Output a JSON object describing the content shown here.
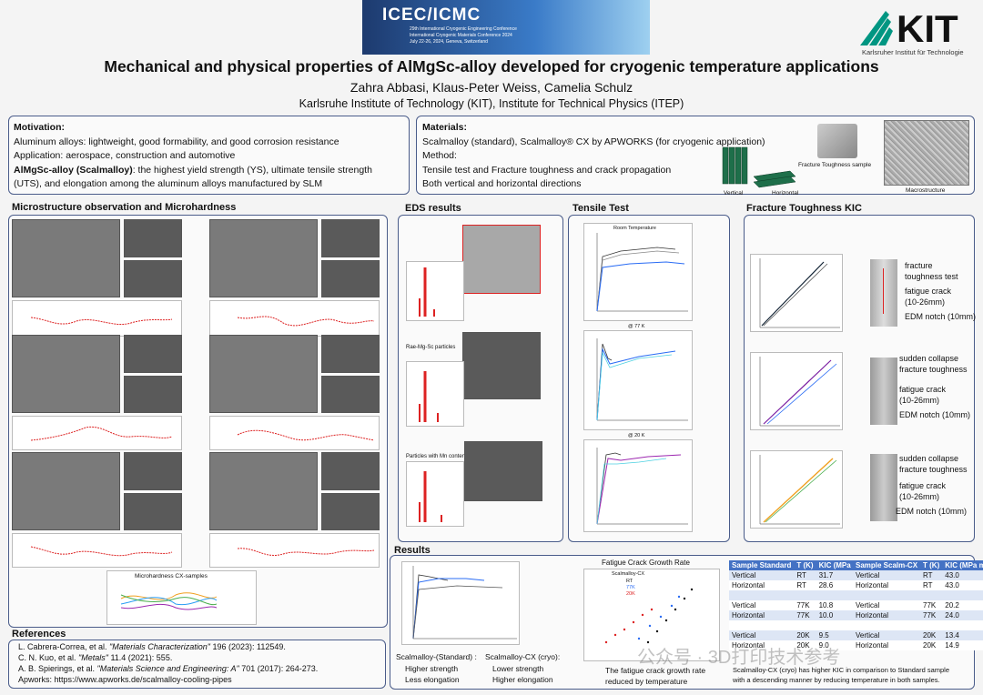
{
  "banner": {
    "conference_logo": "ICEC/ICMC",
    "line1": "29th International Cryogenic Engineering Conference",
    "line2": "International Cryogenic Materials Conference 2024",
    "line3": "July 22-26, 2024, Geneva, Switzerland"
  },
  "institution_logo": {
    "mark": "KIT",
    "caption": "Karlsruher Institut für Technologie"
  },
  "title": "Mechanical and physical properties of AlMgSc-alloy developed for cryogenic temperature applications",
  "authors": "Zahra Abbasi, Klaus-Peter Weiss, Camelia Schulz",
  "affiliation": "Karlsruhe Institute of Technology (KIT), Institute for Technical Physics (ITEP)",
  "motivation": {
    "heading": "Motivation:",
    "line1": "Aluminum alloys: lightweight, good formability, and good corrosion resistance",
    "line2": "Application: aerospace, construction and automotive",
    "line3_bold": "AlMgSc-alloy (Scalmalloy)",
    "line3_rest": ": the highest yield strength (YS), ultimate tensile strength",
    "line4": "(UTS), and elongation among the aluminum alloys manufactured by SLM"
  },
  "materials": {
    "heading": "Materials:",
    "line1": "Scalmalloy (standard), Scalmalloy® CX by APWORKS (for cryogenic application)",
    "line2": "Method:",
    "line3": "Tensile test  and Fracture toughness and crack propagation",
    "line4": "Both vertical and horizontal directions",
    "label_vertical": "Vertical",
    "label_horizontal": "Horizontal",
    "label_ft_sample": "Fracture Toughness sample",
    "label_micro": "Macrostructure"
  },
  "sections": {
    "micro": "Microstructure observation and Microhardness",
    "eds": "EDS results",
    "tensile": "Tensile Test",
    "fracture": "Fracture Toughness KIC",
    "results": "Results",
    "references": "References"
  },
  "micro_panel": {
    "microhardness_title": "Microhardness CX-samples"
  },
  "eds_panel": {
    "label_mid": "Rae-Mg-Sc particles",
    "label_bottom": "Particles with Mn content"
  },
  "tensile_panel": {
    "plot1_title": "Room Temperature",
    "plot2_title": "@ 77 K",
    "plot3_title": "@ 20 K",
    "ylabel": "Stress [MPa]",
    "xlabel": "Strain"
  },
  "fracture_panel": {
    "s1_line1": "fracture",
    "s1_line2": "toughness test",
    "s1_line3": "fatigue crack",
    "s1_line4": "(10-26mm)",
    "s1_line5": "EDM notch (10mm)",
    "s2_line1": "sudden collapse",
    "s2_line2": "fracture toughness",
    "s2_line3": "fatigue crack",
    "s2_line4": "(10-26mm)",
    "s2_line5": "EDM notch (10mm)",
    "s3_line1": "sudden collapse",
    "s3_line2": "fracture toughness",
    "s3_line3": "fatigue crack",
    "s3_line4": "(10-26mm)",
    "s3_line5": "EDM notch (10mm)"
  },
  "results_panel": {
    "fcg_title": "Fatigue Crack Growth Rate",
    "fcg_legend_title": "Scalmalloy-CX",
    "fcg_legend": [
      "RT",
      "77K",
      "20K"
    ],
    "std_bullet_title": "Scalmalloy-(Standard) :",
    "std_bullet_l1": "Higher strength",
    "std_bullet_l2": "Less elongation",
    "cx_bullet_title": "Scalmalloy-CX (cryo):",
    "cx_bullet_l1": "Lower strength",
    "cx_bullet_l2": "Higher elongation",
    "fcg_note_l1": "The fatigue crack growth rate",
    "fcg_note_l2": "reduced by temperature",
    "table_note_l1": "Scalmalloy-CX (cryo) has higher KIC in comparison to Standard sample",
    "table_note_l2": "with a descending manner by reducing temperature in both samples."
  },
  "table_standard": {
    "h1": "Sample Standard",
    "h2": "T (K)",
    "h3": "KIC (MPa m0.5)",
    "rows": [
      [
        "Vertical",
        "RT",
        "31.7"
      ],
      [
        "Horizontal",
        "RT",
        "28.6"
      ],
      [
        "",
        "",
        ""
      ],
      [
        "Vertical",
        "77K",
        "10.8"
      ],
      [
        "Horizontal",
        "77K",
        "10.0"
      ],
      [
        "",
        "",
        ""
      ],
      [
        "Vertical",
        "20K",
        "9.5"
      ],
      [
        "Horizontal",
        "20K",
        "9.0"
      ]
    ]
  },
  "table_cx": {
    "h1": "Sample Scalm-CX",
    "h2": "T (K)",
    "h3": "KIC (MPa m0.5)",
    "rows": [
      [
        "Vertical",
        "RT",
        "43.0"
      ],
      [
        "Horizontal",
        "RT",
        "43.0"
      ],
      [
        "",
        "",
        ""
      ],
      [
        "Vertical",
        "77K",
        "20.2"
      ],
      [
        "Horizontal",
        "77K",
        "24.0"
      ],
      [
        "",
        "",
        ""
      ],
      [
        "Vertical",
        "20K",
        "13.4"
      ],
      [
        "Horizontal",
        "20K",
        "14.9"
      ]
    ]
  },
  "references": {
    "r1_pre": "L. Cabrera-Correa, et al.  ",
    "r1_journal": "\"Materials Characterization\"",
    "r1_post": " 196 (2023): 112549.",
    "r2_pre": "C. N. Kuo, et al.  ",
    "r2_journal": "\"Metals\"",
    "r2_post": " 11.4 (2021): 555.",
    "r3_pre": "A. B. Spierings, et al.  ",
    "r3_journal": "\"Materials Science and Engineering: A\"",
    "r3_post": " 701 (2017): 264-273.",
    "r4": "Apworks: https://www.apworks.de/scalmalloy-cooling-pipes"
  },
  "watermark": "公众号 · 3D打印技术参考",
  "colors": {
    "accent": "#4a5c8a",
    "table_header": "#4472c4",
    "kit_green": "#009682"
  }
}
